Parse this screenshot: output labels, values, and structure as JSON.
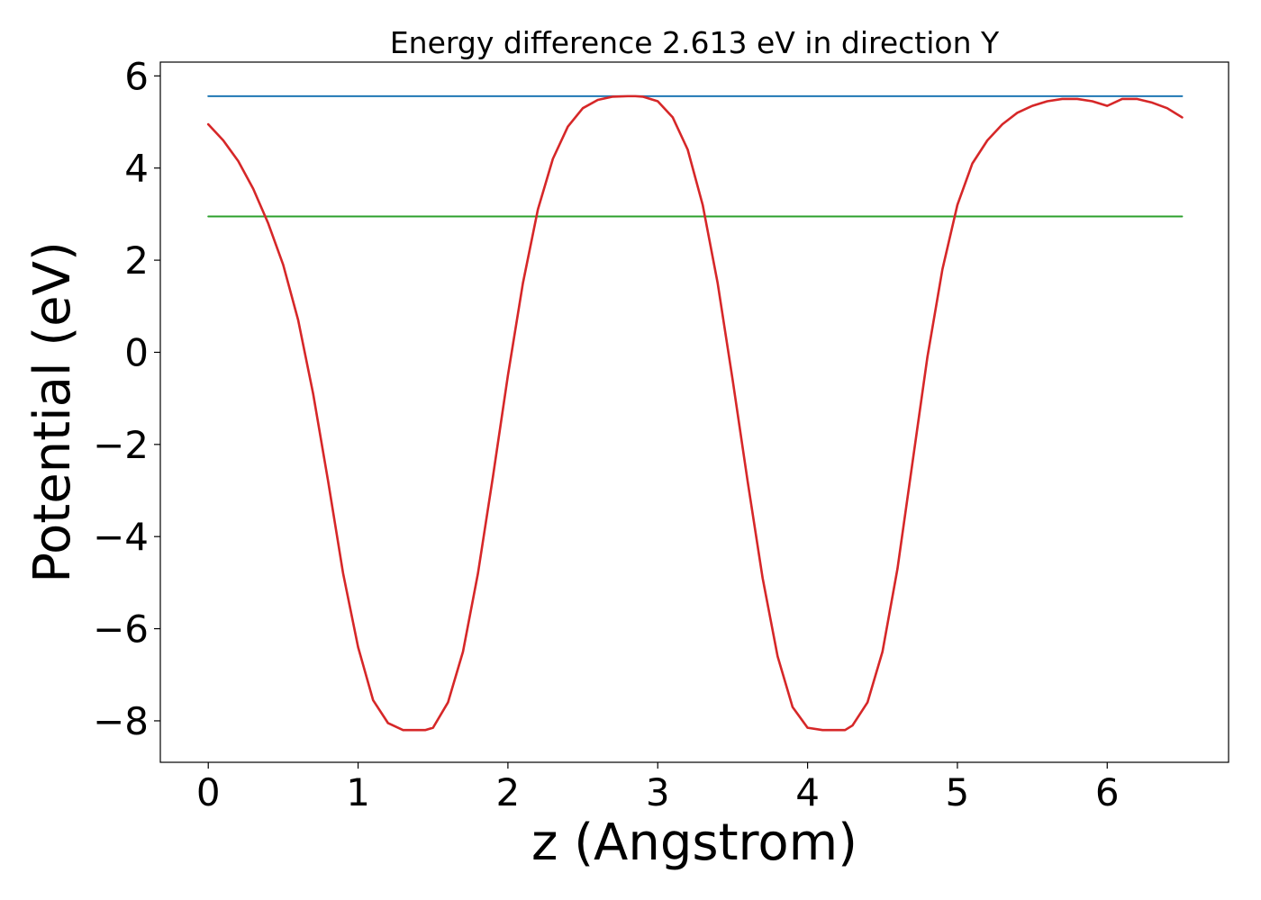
{
  "chart_data": {
    "type": "line",
    "title": "Energy difference 2.613 eV in direction Y",
    "xlabel": "z (Angstrom)",
    "ylabel": "Potential (eV)",
    "xlim": [
      -0.32,
      6.81
    ],
    "ylim": [
      -8.9,
      6.3
    ],
    "xticks": [
      0,
      1,
      2,
      3,
      4,
      5,
      6
    ],
    "yticks": [
      -8,
      -6,
      -4,
      -2,
      0,
      2,
      4,
      6
    ],
    "xtick_labels": [
      "0",
      "1",
      "2",
      "3",
      "4",
      "5",
      "6"
    ],
    "ytick_labels": [
      "−8",
      "−6",
      "−4",
      "−2",
      "0",
      "2",
      "4",
      "6"
    ],
    "grid": false,
    "legend": "none",
    "series": [
      {
        "color": "#d62728",
        "x": [
          0.0,
          0.1,
          0.2,
          0.3,
          0.4,
          0.5,
          0.6,
          0.7,
          0.8,
          0.9,
          1.0,
          1.1,
          1.2,
          1.3,
          1.4,
          1.45,
          1.5,
          1.6,
          1.7,
          1.8,
          1.9,
          2.0,
          2.1,
          2.2,
          2.3,
          2.4,
          2.5,
          2.6,
          2.7,
          2.8,
          2.85,
          2.9,
          3.0,
          3.1,
          3.2,
          3.3,
          3.4,
          3.5,
          3.6,
          3.7,
          3.8,
          3.9,
          4.0,
          4.1,
          4.2,
          4.25,
          4.3,
          4.4,
          4.5,
          4.6,
          4.7,
          4.8,
          4.9,
          5.0,
          5.1,
          5.2,
          5.3,
          5.4,
          5.5,
          5.6,
          5.7,
          5.8,
          5.9,
          6.0,
          6.1,
          6.2,
          6.3,
          6.4,
          6.5
        ],
        "y": [
          4.95,
          4.6,
          4.15,
          3.55,
          2.8,
          1.9,
          0.7,
          -0.9,
          -2.8,
          -4.8,
          -6.4,
          -7.55,
          -8.05,
          -8.2,
          -8.2,
          -8.2,
          -8.15,
          -7.6,
          -6.5,
          -4.8,
          -2.7,
          -0.5,
          1.5,
          3.1,
          4.2,
          4.9,
          5.3,
          5.48,
          5.55,
          5.56,
          5.56,
          5.55,
          5.45,
          5.1,
          4.4,
          3.2,
          1.5,
          -0.6,
          -2.8,
          -4.9,
          -6.6,
          -7.7,
          -8.15,
          -8.2,
          -8.2,
          -8.2,
          -8.1,
          -7.6,
          -6.5,
          -4.7,
          -2.4,
          -0.1,
          1.8,
          3.2,
          4.1,
          4.6,
          4.95,
          5.2,
          5.35,
          5.45,
          5.5,
          5.5,
          5.45,
          5.35,
          5.5,
          5.5,
          5.42,
          5.3,
          5.1
        ]
      },
      {
        "color": "#1f77b4",
        "x": [
          0.0,
          6.5
        ],
        "y": [
          5.56,
          5.56
        ]
      },
      {
        "color": "#2ca02c",
        "x": [
          0.0,
          6.5
        ],
        "y": [
          2.95,
          2.95
        ]
      }
    ]
  }
}
